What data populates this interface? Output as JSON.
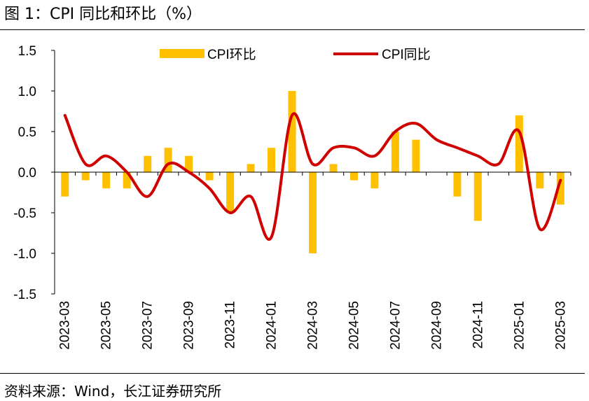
{
  "header": {
    "title": "图 1：CPI 同比和环比（%）"
  },
  "footer": {
    "source": "资料来源：Wind，长江证券研究所"
  },
  "colors": {
    "bar": "#FFC000",
    "line": "#D00000",
    "axis": "#000000"
  },
  "chart_data": {
    "type": "bar+line",
    "title": "CPI 同比和环比（%）",
    "xlabel": "",
    "ylabel": "%",
    "ylim": [
      -1.5,
      1.5
    ],
    "yticks": [
      1.5,
      1.0,
      0.5,
      0.0,
      -0.5,
      -1.0,
      -1.5
    ],
    "ytick_labels": [
      "1.5",
      "1.0",
      "0.5",
      "0.0",
      "-0.5",
      "-1.0",
      "-1.5"
    ],
    "categories": [
      "2023-03",
      "2023-04",
      "2023-05",
      "2023-06",
      "2023-07",
      "2023-08",
      "2023-09",
      "2023-10",
      "2023-11",
      "2023-12",
      "2024-01",
      "2024-02",
      "2024-03",
      "2024-04",
      "2024-05",
      "2024-06",
      "2024-07",
      "2024-08",
      "2024-09",
      "2024-10",
      "2024-11",
      "2024-12",
      "2025-01",
      "2025-02",
      "2025-03"
    ],
    "x_tick_labels": [
      "2023-03",
      "2023-05",
      "2023-07",
      "2023-09",
      "2023-11",
      "2024-01",
      "2024-03",
      "2024-05",
      "2024-07",
      "2024-09",
      "2024-11",
      "2025-01",
      "2025-03"
    ],
    "legend_position": "top",
    "series": [
      {
        "name": "CPI环比",
        "kind": "bar",
        "values": [
          -0.3,
          -0.1,
          -0.2,
          -0.2,
          0.2,
          0.3,
          0.2,
          -0.1,
          -0.5,
          0.1,
          0.3,
          1.0,
          -1.0,
          0.1,
          -0.1,
          -0.2,
          0.5,
          0.4,
          0.0,
          -0.3,
          -0.6,
          0.0,
          0.7,
          -0.2,
          -0.4
        ]
      },
      {
        "name": "CPI同比",
        "kind": "line",
        "values": [
          0.7,
          0.1,
          0.2,
          0.0,
          -0.3,
          0.1,
          0.0,
          -0.2,
          -0.5,
          -0.3,
          -0.8,
          0.7,
          0.1,
          0.3,
          0.3,
          0.2,
          0.5,
          0.6,
          0.4,
          0.3,
          0.2,
          0.1,
          0.5,
          -0.7,
          -0.1
        ]
      }
    ]
  }
}
